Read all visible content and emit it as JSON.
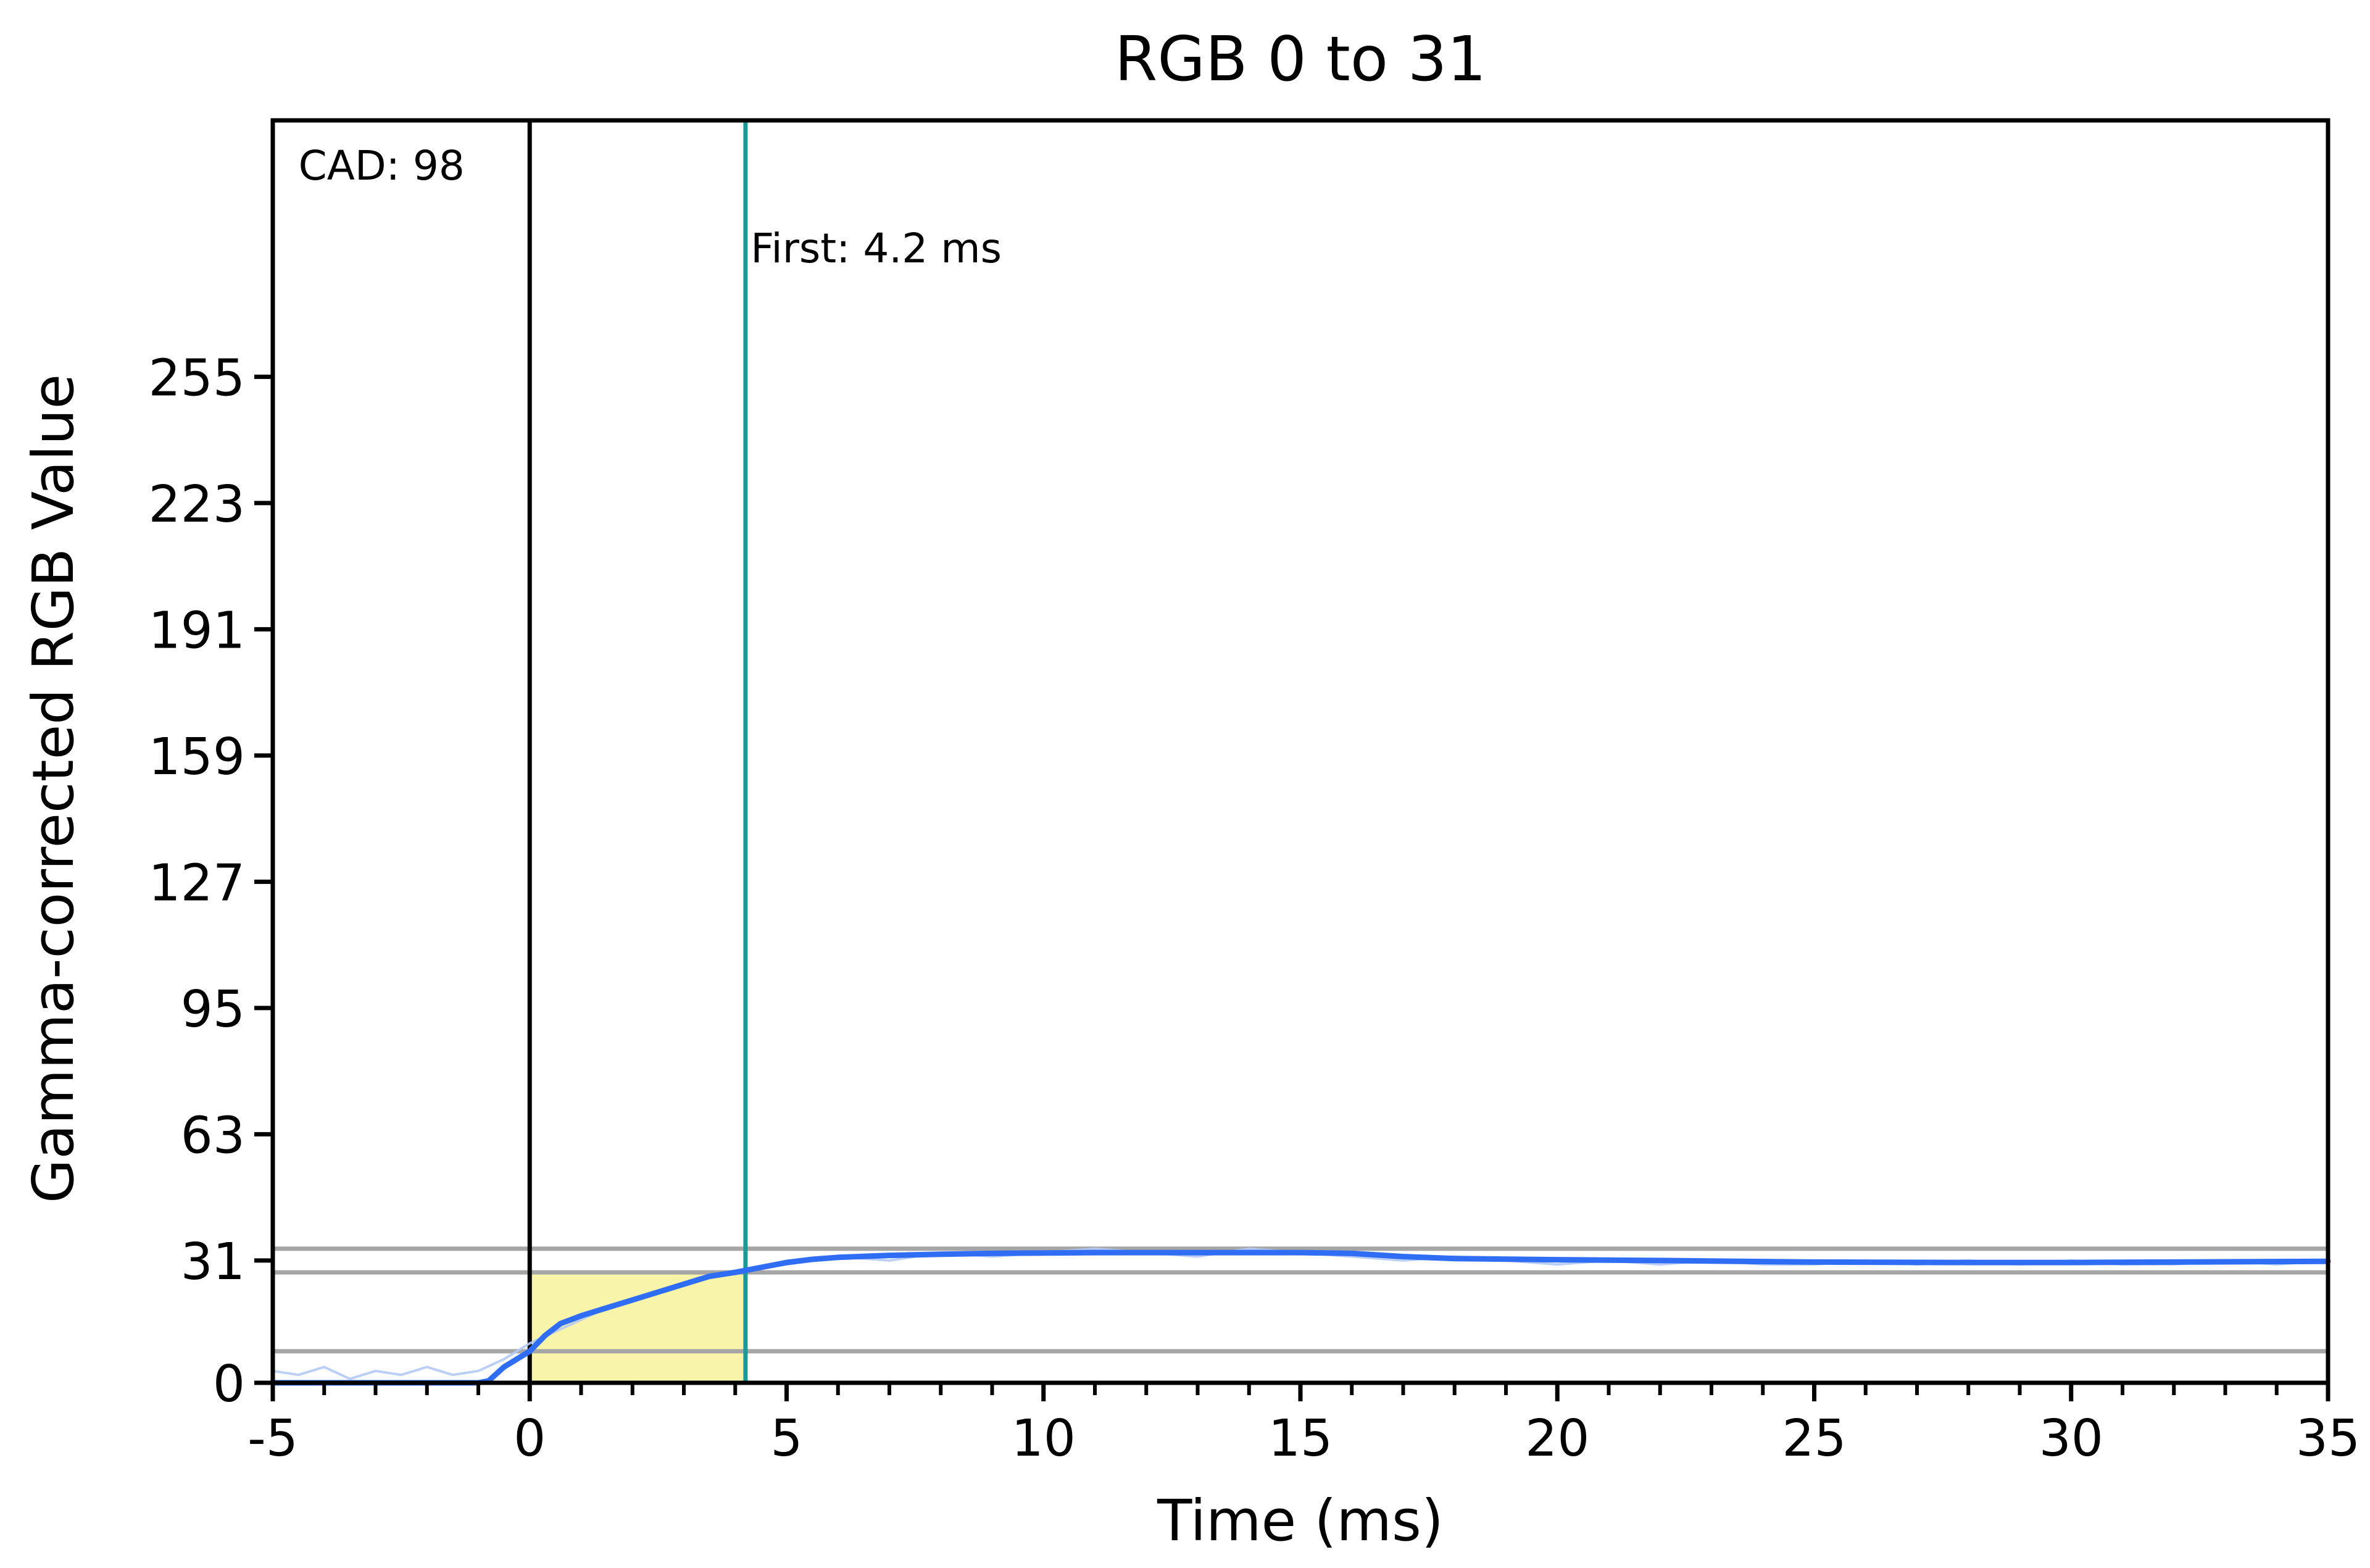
{
  "chart_data": {
    "type": "line",
    "title": "RGB 0 to 31",
    "xlabel": "Time (ms)",
    "ylabel": "Gamma-corrected RGB Value",
    "xlim": [
      -5,
      35
    ],
    "ylim": [
      0,
      320
    ],
    "xticks": [
      -5,
      0,
      5,
      10,
      15,
      20,
      25,
      30,
      35
    ],
    "yticks": [
      0,
      31,
      63,
      95,
      127,
      159,
      191,
      223,
      255
    ],
    "grid": false,
    "legend": "none",
    "reference_lines": {
      "horizontal": [
        8,
        28,
        34
      ],
      "vertical": [
        {
          "x": 0,
          "color": "#000000"
        },
        {
          "x": 4.2,
          "color": "#1a9a96"
        }
      ]
    },
    "shaded_region": {
      "x_start": 0,
      "x_end": 4.2,
      "y_start": 0,
      "y_end": 28,
      "color": "#f5f08c"
    },
    "annotations": [
      {
        "text": "CAD: 98",
        "x": -4.5,
        "y": 305
      },
      {
        "text": "First: 4.2 ms",
        "x": 4.3,
        "y": 284
      }
    ],
    "series": [
      {
        "role": "smoothed",
        "color": "#2f6df5",
        "x": [
          -5,
          -4,
          -3,
          -2,
          -1,
          -0.8,
          -0.5,
          0,
          0.3,
          0.6,
          1,
          1.5,
          2,
          2.5,
          3,
          3.5,
          4,
          4.2,
          4.6,
          5,
          5.5,
          6,
          7,
          8,
          9,
          10,
          11,
          12,
          13,
          14,
          15,
          16,
          17,
          18,
          20,
          22,
          25,
          28,
          30,
          32,
          35
        ],
        "y": [
          0,
          0,
          0,
          0,
          0,
          0.5,
          4,
          8,
          12,
          15,
          17,
          19,
          21,
          23,
          25,
          27,
          28,
          28.5,
          29.5,
          30.5,
          31.3,
          31.8,
          32.3,
          32.6,
          32.8,
          32.9,
          33,
          33,
          33,
          33,
          33,
          32.8,
          32,
          31.5,
          31.2,
          31,
          30.6,
          30.5,
          30.5,
          30.6,
          30.8
        ]
      },
      {
        "role": "raw",
        "color": "#b3c9f5",
        "x": [
          -5,
          -4.5,
          -4,
          -3.5,
          -3,
          -2.5,
          -2,
          -1.5,
          -1,
          -0.5,
          0,
          0.5,
          1,
          1.5,
          2,
          2.5,
          3,
          3.5,
          4,
          4.5,
          5,
          6,
          7,
          8,
          9,
          10,
          11,
          12,
          13,
          14,
          15,
          16,
          17,
          18,
          19,
          20,
          21,
          22,
          23,
          24,
          25,
          26,
          27,
          28,
          29,
          30,
          31,
          32,
          33,
          34,
          35
        ],
        "y": [
          3,
          2,
          4,
          1,
          3,
          2,
          4,
          2,
          3,
          6,
          10,
          13,
          16,
          19,
          21,
          23,
          25,
          27,
          28,
          29,
          30,
          32,
          31,
          33,
          32,
          33,
          34,
          33,
          32,
          34,
          33,
          32,
          31,
          32,
          31,
          30,
          31,
          30,
          31,
          30,
          30,
          31,
          30,
          31,
          30,
          31,
          30,
          30,
          31,
          30,
          31
        ]
      }
    ]
  }
}
